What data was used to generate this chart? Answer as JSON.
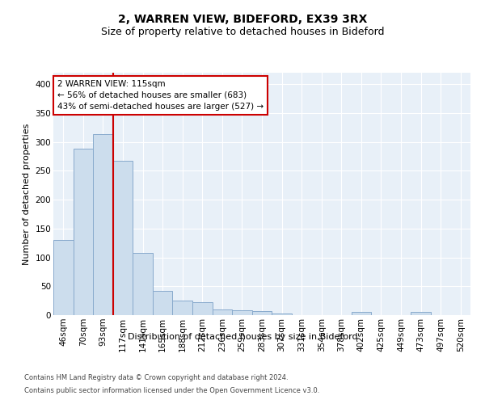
{
  "title": "2, WARREN VIEW, BIDEFORD, EX39 3RX",
  "subtitle": "Size of property relative to detached houses in Bideford",
  "xlabel": "Distribution of detached houses by size in Bideford",
  "ylabel": "Number of detached properties",
  "bar_labels": [
    "46sqm",
    "70sqm",
    "93sqm",
    "117sqm",
    "141sqm",
    "165sqm",
    "188sqm",
    "212sqm",
    "236sqm",
    "259sqm",
    "283sqm",
    "307sqm",
    "331sqm",
    "354sqm",
    "378sqm",
    "402sqm",
    "425sqm",
    "449sqm",
    "473sqm",
    "497sqm",
    "520sqm"
  ],
  "bar_values": [
    130,
    288,
    313,
    268,
    108,
    42,
    25,
    22,
    10,
    9,
    7,
    3,
    0,
    0,
    0,
    5,
    0,
    0,
    5,
    0,
    0
  ],
  "bar_color": "#ccdded",
  "bar_edge_color": "#88aacc",
  "property_line_x": 2.5,
  "property_line_label": "2 WARREN VIEW: 115sqm",
  "annotation_line1": "← 56% of detached houses are smaller (683)",
  "annotation_line2": "43% of semi-detached houses are larger (527) →",
  "annotation_box_color": "#ffffff",
  "annotation_box_edge_color": "#cc0000",
  "vline_color": "#cc0000",
  "footer_line1": "Contains HM Land Registry data © Crown copyright and database right 2024.",
  "footer_line2": "Contains public sector information licensed under the Open Government Licence v3.0.",
  "ylim": [
    0,
    420
  ],
  "background_color": "#e8f0f8",
  "title_fontsize": 10,
  "subtitle_fontsize": 9,
  "axis_label_fontsize": 8,
  "tick_fontsize": 7.5,
  "footer_fontsize": 6
}
